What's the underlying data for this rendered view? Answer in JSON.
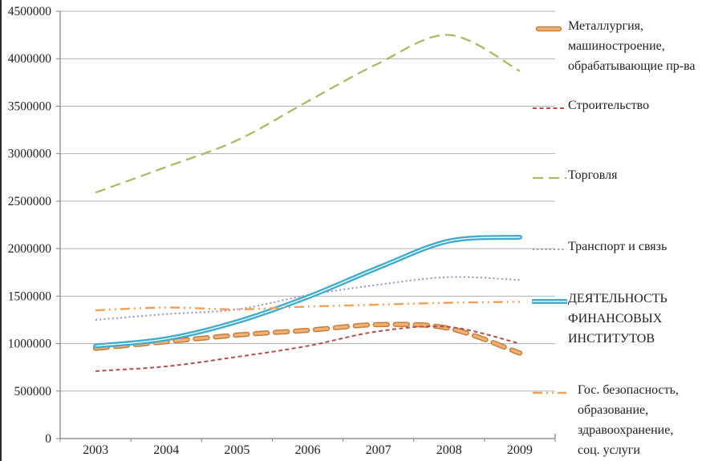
{
  "chart_data": {
    "type": "line",
    "title": "",
    "xlabel": "",
    "ylabel": "",
    "x_tick_labels": [
      "2003",
      "2004",
      "2005",
      "2006",
      "2007",
      "2008",
      "2009"
    ],
    "y_tick_labels": [
      "0",
      "500000",
      "1000000",
      "1500000",
      "2000000",
      "2500000",
      "3000000",
      "3500000",
      "4000000",
      "4500000"
    ],
    "ylim": [
      0,
      4500000
    ],
    "y_step": 500000,
    "grid": "horizontal",
    "legend_position": "right",
    "line_smoothing": true,
    "series": [
      {
        "id": "metallurgy",
        "name": "Металлургия, машиностроение, обрабатывающие пр-ва",
        "legend_lines": "Металлургия,\nмашиностроение,\nобрабатывающие пр-ва",
        "color": "#f4b072",
        "outline_color": "#c0803c",
        "line_style": "thick-outlined-dash",
        "values": [
          950000,
          1020000,
          1090000,
          1140000,
          1200000,
          1160000,
          900000
        ]
      },
      {
        "id": "construction",
        "name": "Строительство",
        "legend_lines": "Строительство",
        "color": "#b2504b",
        "line_style": "short-dash",
        "values": [
          710000,
          760000,
          860000,
          975000,
          1130000,
          1175000,
          1000000
        ]
      },
      {
        "id": "trade",
        "name": "Торговля",
        "legend_lines": "Торговля",
        "color": "#a9ba66",
        "line_style": "long-dash",
        "values": [
          2590000,
          2860000,
          3140000,
          3550000,
          3950000,
          4250000,
          3870000
        ]
      },
      {
        "id": "transport",
        "name": "Транспорт и связь",
        "legend_lines": "Транспорт и связь",
        "color": "#9a90c7",
        "line_style": "dotted",
        "values": [
          1250000,
          1310000,
          1360000,
          1510000,
          1620000,
          1700000,
          1670000
        ]
      },
      {
        "id": "finance",
        "name": "ДЕЯТЕЛЬНОСТЬ ФИНАНСОВЫХ ИНСТИТУТОВ",
        "legend_lines": "ДЕЯТЕЛЬНОСТЬ\nФИНАНСОВЫХ\nИНСТИТУТОВ",
        "color": "#3fabca",
        "core_color": "#ffffff",
        "line_style": "thick-solid-highlight",
        "values": [
          975000,
          1050000,
          1230000,
          1490000,
          1800000,
          2080000,
          2120000
        ]
      },
      {
        "id": "gov",
        "name": "Гос. безопасность, образование, здравоохранение, соц. услуги",
        "legend_lines": "Гос. безопасность,\nобразование,\nздравоохранение,\nсоц. услуги",
        "color": "#f0a155",
        "line_style": "dash-dot-dot",
        "values": [
          1350000,
          1380000,
          1360000,
          1390000,
          1410000,
          1430000,
          1440000
        ]
      }
    ],
    "colors": {
      "gridline": "#b3b3b3",
      "axis": "#7f7f7f",
      "text": "#1f1f1f",
      "background": "#ffffff"
    }
  }
}
